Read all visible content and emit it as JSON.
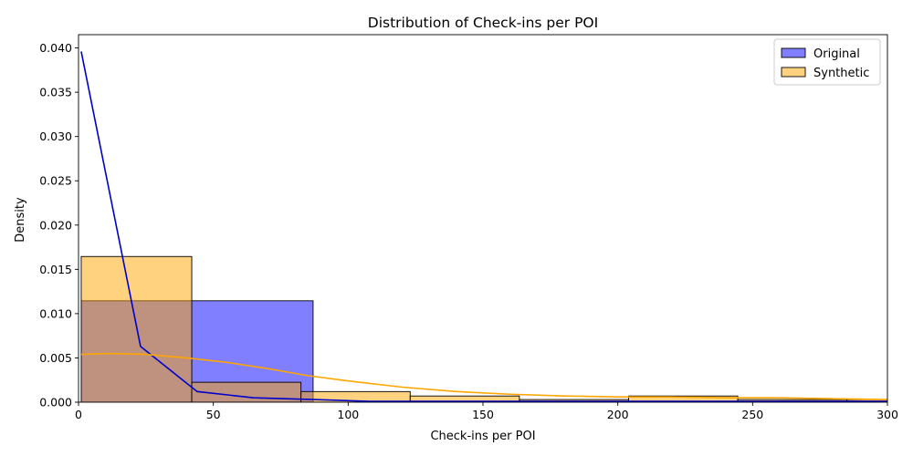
{
  "chart_data": {
    "type": "bar",
    "title": "Distribution of Check-ins per POI",
    "xlabel": "Check-ins per POI",
    "ylabel": "Density",
    "xlim": [
      0,
      300
    ],
    "ylim": [
      0,
      0.0415
    ],
    "x_ticks": [
      "0",
      "50",
      "100",
      "150",
      "200",
      "250",
      "300"
    ],
    "y_ticks": [
      "0.000",
      "0.005",
      "0.010",
      "0.015",
      "0.020",
      "0.025",
      "0.030",
      "0.035",
      "0.040"
    ],
    "grid": false,
    "legend_position": "top-right",
    "series": [
      {
        "name": "Original",
        "kind": "histogram",
        "color": "#0000ff",
        "alpha": 0.5,
        "bins": [
          {
            "x0": 1,
            "x1": 87,
            "value": 0.01145
          },
          {
            "x0": 87,
            "x1": 173,
            "value": 0.0
          },
          {
            "x0": 173,
            "x1": 259,
            "value": 0.0
          },
          {
            "x0": 259,
            "x1": 345,
            "value": 0.00012
          }
        ],
        "kde": {
          "color": "#0000cc",
          "x": [
            1,
            23,
            44,
            65,
            87,
            108,
            130,
            151,
            173,
            194,
            216,
            237,
            259,
            280,
            300
          ],
          "y": [
            0.0396,
            0.0063,
            0.0012,
            0.0005,
            0.0003,
            0.0001,
            0.0001,
            0.0001,
            0.0001,
            0.0001,
            0.0001,
            0.0001,
            0.0001,
            0.0001,
            0.0001
          ]
        }
      },
      {
        "name": "Synthetic",
        "kind": "histogram",
        "color": "#ffa500",
        "alpha": 0.5,
        "bins": [
          {
            "x0": 1,
            "x1": 42,
            "value": 0.01645
          },
          {
            "x0": 42,
            "x1": 82.5,
            "value": 0.00225
          },
          {
            "x0": 82.5,
            "x1": 123,
            "value": 0.0012
          },
          {
            "x0": 123,
            "x1": 163.5,
            "value": 0.0007
          },
          {
            "x0": 163.5,
            "x1": 204,
            "value": 0.0003
          },
          {
            "x0": 204,
            "x1": 244.5,
            "value": 0.0007
          },
          {
            "x0": 244.5,
            "x1": 285,
            "value": 0.0003
          },
          {
            "x0": 285,
            "x1": 325.5,
            "value": 0.0003
          }
        ],
        "kde": {
          "color": "#ffa500",
          "x": [
            1,
            12,
            25,
            40,
            55,
            70,
            85,
            100,
            120,
            140,
            160,
            180,
            200,
            220,
            240,
            260,
            280,
            300
          ],
          "y": [
            0.0054,
            0.0055,
            0.0054,
            0.005,
            0.0045,
            0.0038,
            0.003,
            0.0024,
            0.0017,
            0.0012,
            0.0009,
            0.0007,
            0.0006,
            0.0006,
            0.0005,
            0.0005,
            0.0004,
            0.0003
          ]
        }
      }
    ]
  }
}
